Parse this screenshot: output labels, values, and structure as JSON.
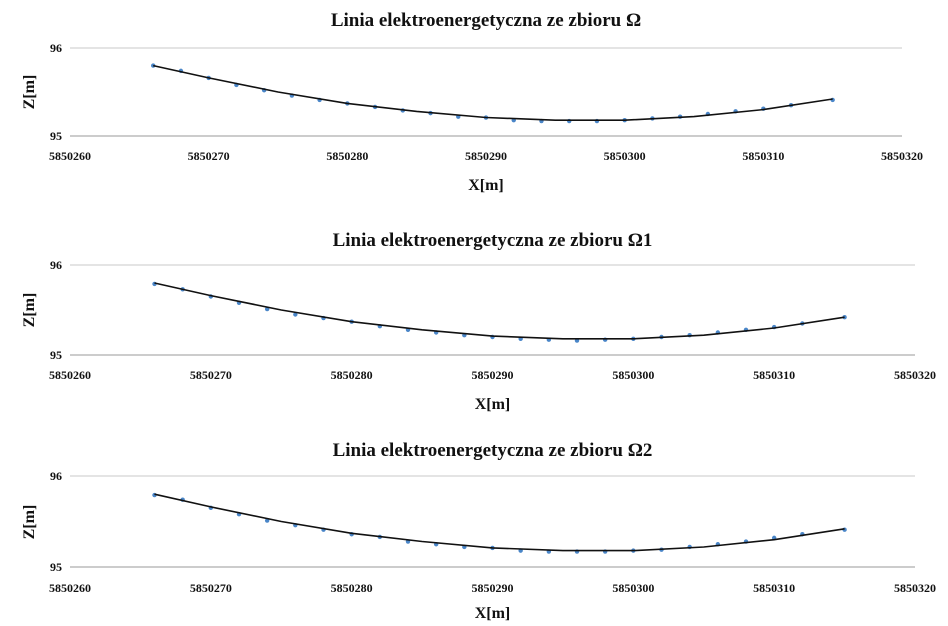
{
  "chart_data": [
    {
      "type": "scatter",
      "title": "Linia elektroenergetyczna ze zbioru Ω",
      "xlabel": "X[m]",
      "ylabel": "Z[m]",
      "xlim": [
        5850260,
        5850320
      ],
      "ylim": [
        95,
        96
      ],
      "xticks": [
        "5850260",
        "5850270",
        "5850280",
        "5850290",
        "5850300",
        "5850310",
        "5850320"
      ],
      "yticks": [
        "95",
        "96"
      ],
      "grid": "horizontal",
      "point_color": "#4a86c8",
      "line_color": "#111111",
      "series": [
        {
          "kind": "points",
          "x": [
            5850266,
            5850268,
            5850270,
            5850272,
            5850274,
            5850276,
            5850278,
            5850280,
            5850282,
            5850284,
            5850286,
            5850288,
            5850290,
            5850292,
            5850294,
            5850296,
            5850298,
            5850300,
            5850302,
            5850304,
            5850306,
            5850308,
            5850310,
            5850312,
            5850315
          ],
          "y": [
            95.8,
            95.74,
            95.66,
            95.58,
            95.52,
            95.46,
            95.41,
            95.37,
            95.33,
            95.29,
            95.26,
            95.22,
            95.21,
            95.18,
            95.17,
            95.17,
            95.17,
            95.18,
            95.2,
            95.22,
            95.25,
            95.28,
            95.31,
            95.35,
            95.41
          ]
        },
        {
          "kind": "fit",
          "x": [
            5850266,
            5850270,
            5850275,
            5850280,
            5850285,
            5850290,
            5850295,
            5850300,
            5850305,
            5850310,
            5850315
          ],
          "y": [
            95.8,
            95.66,
            95.5,
            95.37,
            95.28,
            95.21,
            95.18,
            95.18,
            95.22,
            95.3,
            95.42
          ]
        }
      ]
    },
    {
      "type": "scatter",
      "title": "Linia elektroenergetyczna ze zbioru Ω1",
      "xlabel": "X[m]",
      "ylabel": "Z[m]",
      "xlim": [
        5850260,
        5850320
      ],
      "ylim": [
        95,
        96
      ],
      "xticks": [
        "5850260",
        "5850270",
        "5850280",
        "5850290",
        "5850300",
        "5850310",
        "5850320"
      ],
      "yticks": [
        "95",
        "96"
      ],
      "grid": "horizontal",
      "point_color": "#4a86c8",
      "line_color": "#111111",
      "series": [
        {
          "kind": "points",
          "x": [
            5850266,
            5850268,
            5850270,
            5850272,
            5850274,
            5850276,
            5850278,
            5850280,
            5850282,
            5850284,
            5850286,
            5850288,
            5850290,
            5850292,
            5850294,
            5850296,
            5850298,
            5850300,
            5850302,
            5850304,
            5850306,
            5850308,
            5850310,
            5850312,
            5850315
          ],
          "y": [
            95.79,
            95.73,
            95.65,
            95.58,
            95.51,
            95.45,
            95.41,
            95.37,
            95.32,
            95.28,
            95.25,
            95.22,
            95.2,
            95.18,
            95.17,
            95.16,
            95.17,
            95.18,
            95.2,
            95.22,
            95.25,
            95.28,
            95.31,
            95.35,
            95.42
          ]
        },
        {
          "kind": "fit",
          "x": [
            5850266,
            5850270,
            5850275,
            5850280,
            5850285,
            5850290,
            5850295,
            5850300,
            5850305,
            5850310,
            5850315
          ],
          "y": [
            95.8,
            95.66,
            95.5,
            95.37,
            95.28,
            95.21,
            95.18,
            95.18,
            95.22,
            95.3,
            95.42
          ]
        }
      ]
    },
    {
      "type": "scatter",
      "title": "Linia elektroenergetyczna ze zbioru Ω2",
      "xlabel": "X[m]",
      "ylabel": "Z[m]",
      "xlim": [
        5850260,
        5850320
      ],
      "ylim": [
        95,
        96
      ],
      "xticks": [
        "5850260",
        "5850270",
        "5850280",
        "5850290",
        "5850300",
        "5850310",
        "5850320"
      ],
      "yticks": [
        "95",
        "96"
      ],
      "grid": "horizontal",
      "point_color": "#4a86c8",
      "line_color": "#111111",
      "series": [
        {
          "kind": "points",
          "x": [
            5850266,
            5850268,
            5850270,
            5850272,
            5850274,
            5850276,
            5850278,
            5850280,
            5850282,
            5850284,
            5850286,
            5850288,
            5850290,
            5850292,
            5850294,
            5850296,
            5850298,
            5850300,
            5850302,
            5850304,
            5850306,
            5850308,
            5850310,
            5850312,
            5850315
          ],
          "y": [
            95.79,
            95.74,
            95.65,
            95.58,
            95.51,
            95.46,
            95.41,
            95.36,
            95.33,
            95.28,
            95.25,
            95.22,
            95.21,
            95.18,
            95.17,
            95.17,
            95.17,
            95.18,
            95.19,
            95.22,
            95.25,
            95.28,
            95.32,
            95.36,
            95.41
          ]
        },
        {
          "kind": "fit",
          "x": [
            5850266,
            5850270,
            5850275,
            5850280,
            5850285,
            5850290,
            5850295,
            5850300,
            5850305,
            5850310,
            5850315
          ],
          "y": [
            95.8,
            95.66,
            95.5,
            95.37,
            95.28,
            95.21,
            95.18,
            95.18,
            95.22,
            95.3,
            95.42
          ]
        }
      ]
    }
  ]
}
